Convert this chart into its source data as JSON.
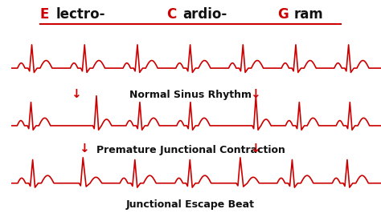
{
  "title_parts": [
    {
      "text": "E",
      "color": "#cc0000"
    },
    {
      "text": "lectro-",
      "color": "#111111"
    },
    {
      "text": "C",
      "color": "#cc0000"
    },
    {
      "text": "ardio-",
      "color": "#111111"
    },
    {
      "text": "G",
      "color": "#cc0000"
    },
    {
      "text": "ram",
      "color": "#111111"
    }
  ],
  "title_underline": true,
  "row_labels": [
    "Normal Sinus Rhythm",
    "Premature Junctional Contraction",
    "Junctional Escape Beat"
  ],
  "ecg_color": "#cc0000",
  "background_color": "#ffffff",
  "arrow_color": "#cc0000",
  "label_color": "#111111",
  "label_fontsize": 9,
  "title_fontsize": 12
}
